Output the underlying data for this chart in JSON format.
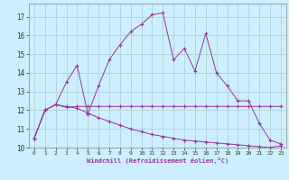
{
  "xlabel": "Windchill (Refroidissement éolien,°C)",
  "xlim": [
    -0.5,
    23.5
  ],
  "ylim": [
    10.0,
    17.7
  ],
  "yticks": [
    10,
    11,
    12,
    13,
    14,
    15,
    16,
    17
  ],
  "xticks": [
    0,
    1,
    2,
    3,
    4,
    5,
    6,
    7,
    8,
    9,
    10,
    11,
    12,
    13,
    14,
    15,
    16,
    17,
    18,
    19,
    20,
    21,
    22,
    23
  ],
  "bg_color": "#cceeff",
  "grid_color": "#aacccc",
  "line_color": "#993399",
  "line3_x": [
    0,
    1,
    2,
    3,
    4,
    5,
    6,
    7,
    8,
    9,
    10,
    11,
    12,
    13,
    14,
    15,
    16,
    17,
    18,
    19,
    20,
    21,
    22,
    23
  ],
  "line3_y": [
    10.5,
    12.0,
    12.3,
    13.5,
    14.4,
    11.8,
    13.3,
    14.7,
    15.5,
    16.2,
    16.6,
    17.1,
    17.2,
    14.7,
    15.3,
    14.1,
    16.1,
    14.0,
    13.3,
    12.5,
    12.5,
    11.3,
    10.4,
    10.2
  ],
  "line2_x": [
    0,
    1,
    2,
    3,
    4,
    5,
    6,
    7,
    8,
    9,
    10,
    11,
    12,
    13,
    14,
    15,
    16,
    17,
    18,
    19,
    20,
    21,
    22,
    23
  ],
  "line2_y": [
    10.5,
    12.0,
    12.3,
    12.15,
    12.2,
    12.2,
    12.2,
    12.2,
    12.2,
    12.2,
    12.2,
    12.2,
    12.2,
    12.2,
    12.2,
    12.2,
    12.2,
    12.2,
    12.2,
    12.2,
    12.2,
    12.2,
    12.2,
    12.2
  ],
  "line1_x": [
    0,
    1,
    2,
    3,
    4,
    5,
    6,
    7,
    8,
    9,
    10,
    11,
    12,
    13,
    14,
    15,
    16,
    17,
    18,
    19,
    20,
    21,
    22,
    23
  ],
  "line1_y": [
    10.5,
    12.0,
    12.3,
    12.2,
    12.1,
    11.85,
    11.6,
    11.4,
    11.2,
    11.0,
    10.85,
    10.7,
    10.6,
    10.5,
    10.4,
    10.35,
    10.3,
    10.25,
    10.2,
    10.15,
    10.1,
    10.05,
    10.0,
    10.1
  ],
  "marker": "+"
}
